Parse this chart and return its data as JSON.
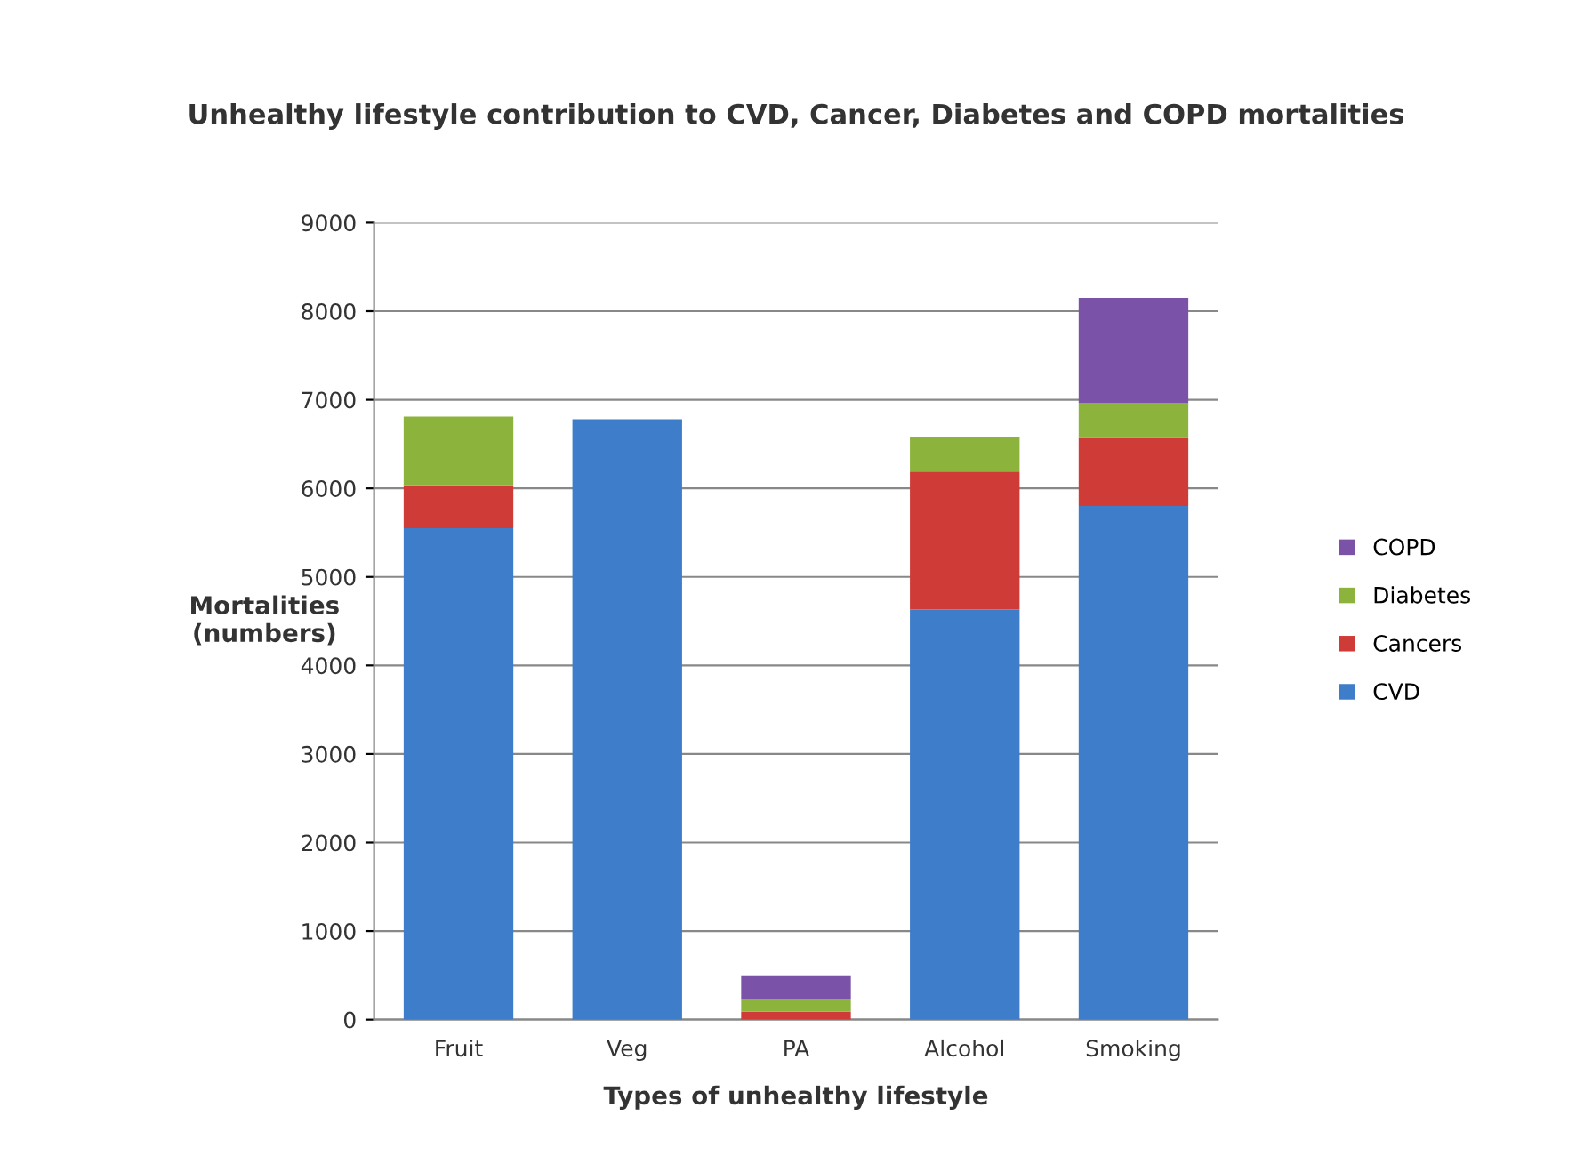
{
  "chart_data": {
    "type": "bar",
    "stacked": true,
    "title": "Unhealthy lifestyle contribution to CVD, Cancer, Diabetes and COPD mortalities",
    "xlabel": "Types of unhealthy lifestyle",
    "ylabel": "Mortalities\n(numbers)",
    "categories": [
      "Fruit",
      "Veg",
      "PA",
      "Alcohol",
      "Smoking"
    ],
    "series": [
      {
        "name": "CVD",
        "color": "#3d7dc9",
        "values": [
          5550,
          6780,
          0,
          4630,
          5800
        ]
      },
      {
        "name": "Cancers",
        "color": "#cf3b37",
        "values": [
          485,
          0,
          90,
          1560,
          770
        ]
      },
      {
        "name": "Diabetes",
        "color": "#8cb43c",
        "values": [
          775,
          0,
          140,
          390,
          390
        ]
      },
      {
        "name": "COPD",
        "color": "#7a52a8",
        "values": [
          0,
          0,
          260,
          0,
          1190
        ]
      }
    ],
    "ylim": [
      0,
      9000
    ],
    "yticks": [
      0,
      1000,
      2000,
      3000,
      4000,
      5000,
      6000,
      7000,
      8000,
      9000
    ],
    "grid": "y",
    "legend": "right"
  }
}
